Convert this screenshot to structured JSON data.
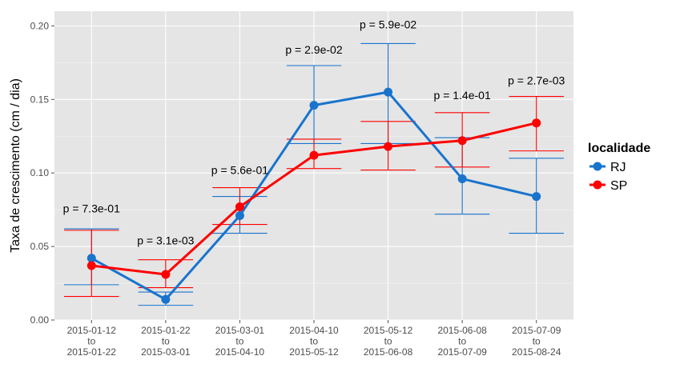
{
  "chart_data": {
    "type": "line",
    "title": "",
    "xlabel": "",
    "ylabel": "Taxa de crescimento (cm / dia)",
    "ylim": [
      0,
      0.21
    ],
    "yticks": [
      "0.00",
      "0.05",
      "0.10",
      "0.15",
      "0.20"
    ],
    "ytick_values": [
      0,
      0.05,
      0.1,
      0.15,
      0.2
    ],
    "categories": [
      [
        "2015-01-12",
        "to",
        "2015-01-22"
      ],
      [
        "2015-01-22",
        "to",
        "2015-03-01"
      ],
      [
        "2015-03-01",
        "to",
        "2015-04-10"
      ],
      [
        "2015-04-10",
        "to",
        "2015-05-12"
      ],
      [
        "2015-05-12",
        "to",
        "2015-06-08"
      ],
      [
        "2015-06-08",
        "to",
        "2015-07-09"
      ],
      [
        "2015-07-09",
        "to",
        "2015-08-24"
      ]
    ],
    "series": [
      {
        "name": "RJ",
        "color": "#1874CD",
        "values": [
          0.042,
          0.014,
          0.071,
          0.146,
          0.155,
          0.096,
          0.084
        ],
        "lower": [
          0.024,
          0.01,
          0.059,
          0.12,
          0.12,
          0.072,
          0.059
        ],
        "upper": [
          0.062,
          0.019,
          0.084,
          0.173,
          0.188,
          0.124,
          0.11
        ]
      },
      {
        "name": "SP",
        "color": "#FF0000",
        "values": [
          0.037,
          0.031,
          0.077,
          0.112,
          0.118,
          0.122,
          0.134
        ],
        "lower": [
          0.016,
          0.022,
          0.065,
          0.103,
          0.102,
          0.104,
          0.115
        ],
        "upper": [
          0.061,
          0.041,
          0.09,
          0.123,
          0.135,
          0.141,
          0.152
        ]
      }
    ],
    "annotations": [
      "p = 7.3e-01",
      "p = 3.1e-03",
      "p = 5.6e-01",
      "p = 2.9e-02",
      "p = 5.9e-02",
      "p = 1.4e-01",
      "p = 2.7e-03"
    ],
    "annotation_y": [
      0.076,
      0.054,
      0.102,
      0.184,
      0.201,
      0.153,
      0.163
    ],
    "legend": {
      "title": "localidade",
      "position": "right"
    },
    "grid": true,
    "panel_background": "#E5E5E5",
    "grid_color": "#FFFFFF"
  }
}
